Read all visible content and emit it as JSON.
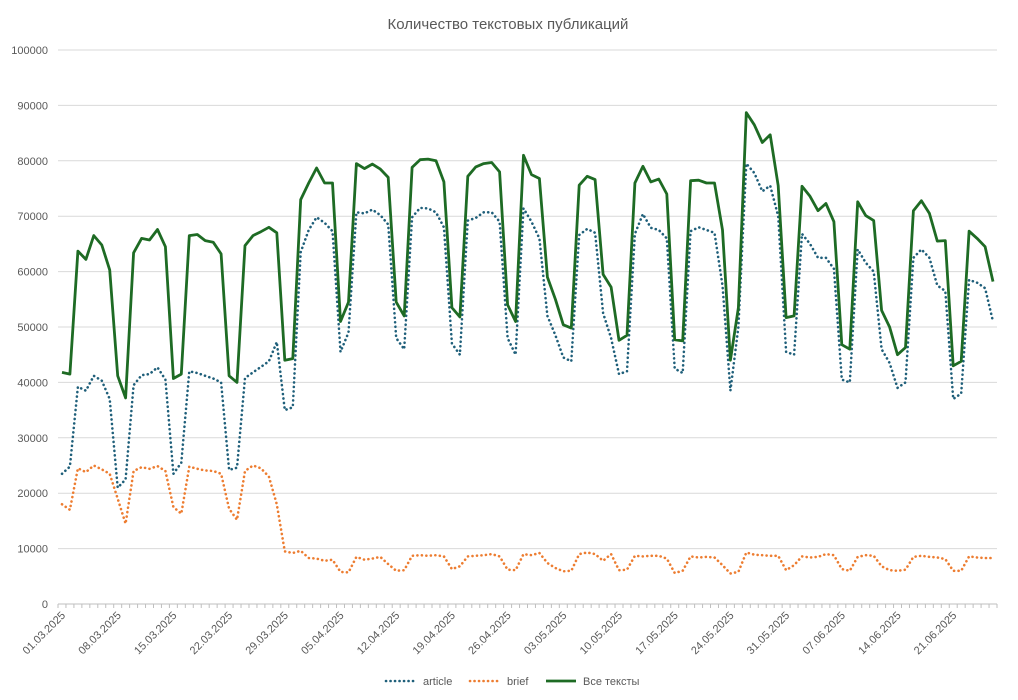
{
  "chart_data": {
    "type": "line",
    "title": "Количество текстовых публикаций",
    "xlabel": "",
    "ylabel": "",
    "ylim": [
      0,
      100000
    ],
    "y_ticks": [
      "0",
      "10000",
      "20000",
      "30000",
      "40000",
      "50000",
      "60000",
      "70000",
      "80000",
      "90000",
      "100000"
    ],
    "x_tick_labels": [
      "01.03.2025",
      "08.03.2025",
      "15.03.2025",
      "22.03.2025",
      "29.03.2025",
      "05.04.2025",
      "12.04.2025",
      "19.04.2025",
      "26.04.2025",
      "03.05.2025",
      "10.05.2025",
      "17.05.2025",
      "24.05.2025",
      "31.05.2025",
      "07.06.2025",
      "14.06.2025",
      "21.06.2025"
    ],
    "x_start": "01.03.2025",
    "x_end": "27.06.2025",
    "grid": true,
    "legend": "bottom",
    "series": [
      {
        "name": "article",
        "style": "dotted",
        "color": "#1f5f7a",
        "values": [
          23500,
          24800,
          39200,
          38500,
          41200,
          40300,
          37000,
          21000,
          22500,
          39500,
          41300,
          41500,
          42700,
          40500,
          23500,
          25500,
          42000,
          41700,
          41200,
          40700,
          40000,
          24200,
          24600,
          40800,
          41800,
          42800,
          43800,
          47300,
          35000,
          35500,
          63500,
          67500,
          69800,
          68800,
          67300,
          45500,
          49000,
          70700,
          70500,
          71200,
          70200,
          68500,
          48000,
          46000,
          69800,
          71500,
          71400,
          70700,
          68000,
          47000,
          45000,
          69200,
          69700,
          70700,
          70700,
          69000,
          48000,
          45000,
          71400,
          69000,
          66000,
          52000,
          48500,
          44500,
          43800,
          66600,
          67700,
          67000,
          52500,
          48000,
          41500,
          42000,
          66800,
          70400,
          67900,
          67500,
          66000,
          42500,
          41700,
          67300,
          68000,
          67500,
          67000,
          57500,
          38500,
          50000,
          79500,
          77800,
          74500,
          75500,
          70000,
          45500,
          45000,
          66800,
          65000,
          62500,
          62500,
          60500,
          40500,
          40000,
          64000,
          61600,
          60000,
          46000,
          43500,
          39000,
          40000,
          62500,
          64000,
          62500,
          57500,
          56500,
          37000,
          38000,
          58500,
          58000,
          57000,
          51000
        ]
      },
      {
        "name": "brief",
        "style": "dotted",
        "color": "#ed7d31",
        "values": [
          18000,
          17000,
          24500,
          23800,
          25000,
          24300,
          23500,
          19000,
          14500,
          24000,
          24700,
          24400,
          24900,
          24000,
          17500,
          16300,
          24800,
          24400,
          24100,
          24000,
          23500,
          17200,
          15200,
          24000,
          25000,
          24500,
          23000,
          18000,
          9500,
          9200,
          9600,
          8300,
          8200,
          7800,
          8000,
          5800,
          5700,
          8500,
          8000,
          8200,
          8500,
          7200,
          6000,
          6100,
          8700,
          8800,
          8700,
          8800,
          8600,
          6300,
          6800,
          8600,
          8700,
          8800,
          9000,
          8600,
          6200,
          6100,
          9000,
          8800,
          9200,
          7400,
          6500,
          5900,
          6000,
          9000,
          9300,
          9000,
          7800,
          9000,
          6100,
          6200,
          8700,
          8600,
          8700,
          8700,
          8200,
          5600,
          6000,
          8600,
          8400,
          8500,
          8400,
          7000,
          5500,
          5800,
          9300,
          8900,
          8800,
          8700,
          8700,
          6100,
          7000,
          8600,
          8400,
          8500,
          9000,
          8800,
          6300,
          6000,
          8500,
          8800,
          8700,
          6800,
          6100,
          6000,
          6200,
          8500,
          8700,
          8500,
          8400,
          8100,
          6000,
          6000,
          8600,
          8400,
          8300,
          8300
        ]
      },
      {
        "name": "Все тексты",
        "style": "solid",
        "color": "#1e6b24",
        "values": [
          41800,
          41500,
          63700,
          62200,
          66500,
          64800,
          60300,
          41200,
          37200,
          63400,
          66000,
          65700,
          67600,
          64500,
          40700,
          41500,
          66500,
          66700,
          65600,
          65300,
          63200,
          41200,
          40000,
          64700,
          66500,
          67200,
          68000,
          67000,
          44000,
          44300,
          73000,
          76000,
          78700,
          76000,
          76000,
          51000,
          54500,
          79500,
          78600,
          79400,
          78500,
          77000,
          54500,
          52000,
          78800,
          80200,
          80300,
          80000,
          76200,
          53500,
          51800,
          77200,
          78900,
          79500,
          79700,
          78000,
          54000,
          51000,
          81000,
          77500,
          76800,
          59000,
          55000,
          50400,
          49800,
          75600,
          77200,
          76600,
          59500,
          57200,
          47600,
          48500,
          76000,
          79000,
          76200,
          76700,
          74000,
          47700,
          47500,
          76400,
          76500,
          76000,
          76000,
          67500,
          44000,
          53500,
          88700,
          86500,
          83300,
          84700,
          75500,
          51700,
          52000,
          75400,
          73600,
          71000,
          72300,
          69000,
          46800,
          46000,
          72600,
          70100,
          69200,
          53000,
          50000,
          45000,
          46300,
          71000,
          72800,
          70500,
          65500,
          65600,
          43000,
          43800,
          67300,
          66000,
          64500,
          58200
        ]
      }
    ]
  }
}
